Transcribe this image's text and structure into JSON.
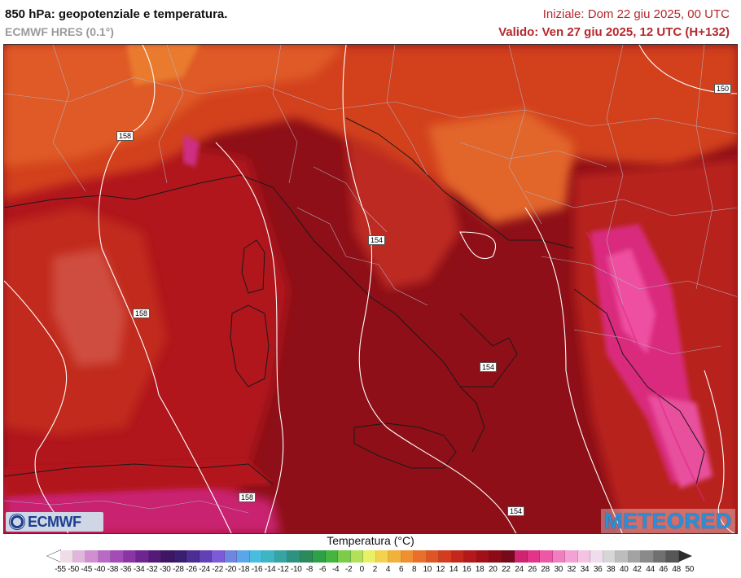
{
  "header": {
    "title": "850 hPa: geopotenziale e temperatura.",
    "model": "ECMWF HRES (0.1°)",
    "init_time": "Iniziale: Dom 22 giu 2025, 00 UTC",
    "valid_time": "Valido: Ven 27 giu 2025, 12 UTC (H+132)"
  },
  "map": {
    "isohypse_labels": [
      "158",
      "154",
      "158",
      "154",
      "158",
      "154",
      "150"
    ],
    "colors": {
      "dark_red": "#8e0f17",
      "red": "#b5191c",
      "orange_red": "#d2401e",
      "orange": "#e2642a",
      "pink": "#e33a8c",
      "magenta": "#c8237b",
      "contour": "#ffffff",
      "border": "#b4b4c8"
    }
  },
  "logos": {
    "left": "ECMWF",
    "right": "METEORED"
  },
  "legend": {
    "title": "Temperatura (°C)",
    "ticks": [
      "-55",
      "-50",
      "-45",
      "-40",
      "-38",
      "-36",
      "-34",
      "-32",
      "-30",
      "-28",
      "-26",
      "-24",
      "-22",
      "-20",
      "-18",
      "-16",
      "-14",
      "-12",
      "-10",
      "-8",
      "-6",
      "-4",
      "-2",
      "0",
      "2",
      "4",
      "6",
      "8",
      "10",
      "12",
      "14",
      "16",
      "18",
      "20",
      "22",
      "24",
      "26",
      "28",
      "30",
      "32",
      "34",
      "36",
      "38",
      "40",
      "42",
      "44",
      "46",
      "48",
      "50"
    ],
    "colors": [
      "#f0dbe9",
      "#e1b6dd",
      "#cf8fd0",
      "#b96ac4",
      "#a44bb8",
      "#8a35a5",
      "#6f2590",
      "#541a78",
      "#3e1663",
      "#3a1e72",
      "#4b2d94",
      "#6240b5",
      "#7d5ad8",
      "#6e86e0",
      "#5aa6e8",
      "#49bde0",
      "#3fb5c4",
      "#37a3a3",
      "#2f9280",
      "#2a8a5c",
      "#2ea048",
      "#45b540",
      "#7ccc4a",
      "#b3e05a",
      "#e8f066",
      "#f5d24d",
      "#f2b03c",
      "#ee9030",
      "#e8702a",
      "#e05525",
      "#d33c20",
      "#c4281c",
      "#b3191a",
      "#a01018",
      "#8c0b18",
      "#760a1c",
      "#cf2470",
      "#e3348a",
      "#ec58a6",
      "#f07fbf",
      "#f3a3d3",
      "#f4c3e3",
      "#efdcec",
      "#d6d6d6",
      "#bdbdbd",
      "#a3a3a3",
      "#8a8a8a",
      "#707070",
      "#575757"
    ]
  }
}
